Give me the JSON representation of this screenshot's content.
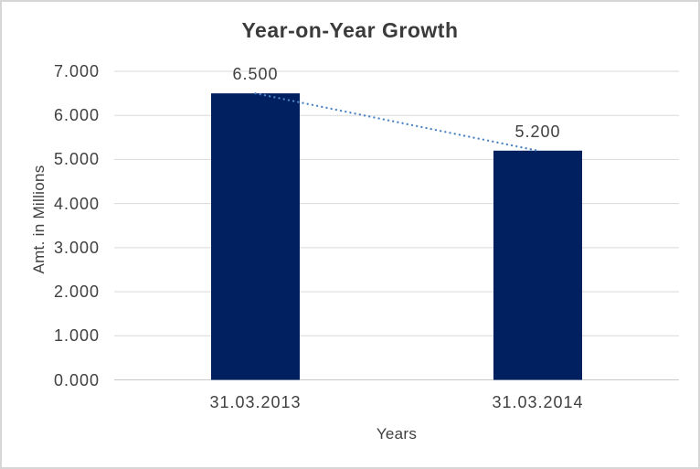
{
  "chart_data": {
    "type": "bar",
    "title": "Year-on-Year Growth",
    "categories": [
      "31.03.2013",
      "31.03.2014"
    ],
    "values": [
      6.5,
      5.2
    ],
    "data_labels": [
      "6.500",
      "5.200"
    ],
    "xlabel": "Years",
    "ylabel": "Amt. in Millions",
    "ylim": [
      0,
      7
    ],
    "ytick_values": [
      0,
      1,
      2,
      3,
      4,
      5,
      6,
      7
    ],
    "ytick_labels": [
      "0.000",
      "1.000",
      "2.000",
      "3.000",
      "4.000",
      "5.000",
      "6.000",
      "7.000"
    ],
    "grid": true,
    "legend": "none",
    "trendline": {
      "type": "linear",
      "style": "dotted",
      "from_value": 6.5,
      "to_value": 5.2
    },
    "colors": {
      "bar": "#002060",
      "trendline": "#4e86c6",
      "gridline": "#d9d9d9",
      "axis_line": "#c9c9c9",
      "title_text": "#3b3b3b",
      "label_text": "#404040",
      "border": "#d6d6d6",
      "background": "#ffffff"
    }
  }
}
